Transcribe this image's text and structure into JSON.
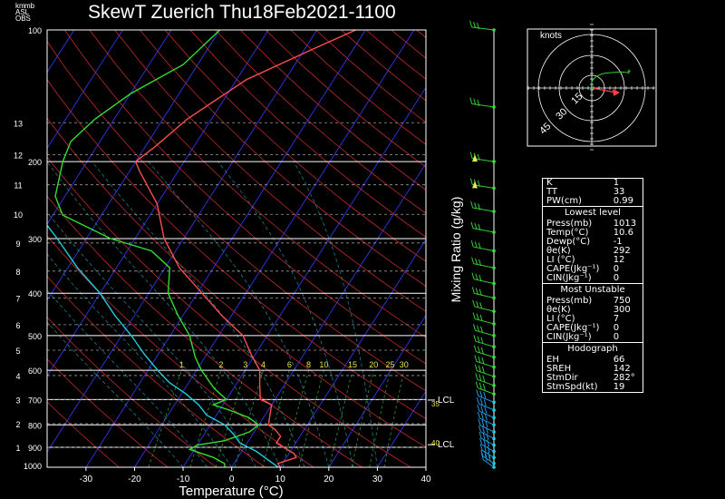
{
  "title": "SkewT Zuerich Thu18Feb2021-1100",
  "corner_labels": [
    "km",
    "mb",
    "ASL",
    "OBS"
  ],
  "xlabel": "Temperature (°C)",
  "mixing_ratio_label": "Mixing Ratio (g/kg)",
  "hodograph": {
    "unit_label": "knots",
    "ring_labels": [
      "15",
      "30",
      "45"
    ]
  },
  "indices_box": {
    "rows": [
      [
        "K",
        "1"
      ],
      [
        "TT",
        "33"
      ],
      [
        "PW(cm)",
        "0.99"
      ]
    ],
    "sections": [
      {
        "title": "Lowest level",
        "rows": [
          [
            "Press(mb)",
            "1013"
          ],
          [
            "Temp(°C)",
            "10.6"
          ],
          [
            "Dewp(°C)",
            "-1"
          ],
          [
            "θe(K)",
            "292"
          ],
          [
            "LI (°C)",
            "12"
          ],
          [
            "CAPE(Jkg⁻¹)",
            "0"
          ],
          [
            "CIN(Jkg⁻¹)",
            "0"
          ]
        ]
      },
      {
        "title": "Most Unstable",
        "rows": [
          [
            "Press(mb)",
            "750"
          ],
          [
            "θe(K)",
            "300"
          ],
          [
            "LI (°C)",
            "7"
          ],
          [
            "CAPE(Jkg⁻¹)",
            "0"
          ],
          [
            "CIN(Jkg⁻¹)",
            "0"
          ]
        ]
      },
      {
        "title": "Hodograph",
        "rows": [
          [
            "EH",
            "66"
          ],
          [
            "SREH",
            "142"
          ],
          [
            "",
            ""
          ],
          [
            "StmDir",
            "282°"
          ],
          [
            "StmSpd(kt)",
            "19"
          ]
        ]
      }
    ]
  },
  "chart_data": {
    "type": "line",
    "title": "SkewT Zuerich Thu18Feb2021-1100",
    "xlabel": "Temperature (°C)",
    "ylabel": "",
    "x_ticks": [
      "-30",
      "-20",
      "-10",
      "0",
      "10",
      "20",
      "30",
      "40"
    ],
    "xlim": [
      -38,
      40
    ],
    "pressure_ticks": [
      "100",
      "200",
      "300",
      "400",
      "500",
      "600",
      "700",
      "800",
      "900",
      "1000"
    ],
    "pressure_levels": [
      100,
      200,
      300,
      400,
      500,
      600,
      700,
      800,
      900,
      1000
    ],
    "ylim": [
      1000,
      100
    ],
    "y_scale": "log",
    "height_ticks_km": [
      "1",
      "2",
      "3",
      "4",
      "5",
      "6",
      "7",
      "8",
      "9",
      "10",
      "11",
      "12",
      "13"
    ],
    "height_levels_mb": [
      900,
      795,
      700,
      617,
      540,
      472,
      410,
      356,
      307,
      264,
      226,
      193,
      163
    ],
    "mixing_ratio_labels": [
      "1",
      "2",
      "3",
      "4",
      "6",
      "8",
      "10",
      "15",
      "20",
      "25",
      "30"
    ],
    "mixing_ratio_values": [
      1,
      2,
      3,
      4,
      6,
      8,
      10,
      15,
      20,
      25,
      30
    ],
    "lcl_labels": [
      "LCL",
      "LCL"
    ],
    "lcl_levels_mb": [
      702,
      888
    ],
    "right_tick_values": [
      "35",
      "40"
    ],
    "right_tick_levels_mb": [
      715,
      880
    ],
    "series": [
      {
        "name": "",
        "color": "#ff4d4d",
        "points": [
          [
            10.6,
            1013
          ],
          [
            9,
            980
          ],
          [
            12,
            950
          ],
          [
            11,
            930
          ],
          [
            8,
            900
          ],
          [
            6,
            880
          ],
          [
            6,
            850
          ],
          [
            4,
            820
          ],
          [
            2,
            800
          ],
          [
            1,
            760
          ],
          [
            0,
            720
          ],
          [
            -3,
            700
          ],
          [
            -5,
            650
          ],
          [
            -7,
            600
          ],
          [
            -11,
            550
          ],
          [
            -15,
            500
          ],
          [
            -22,
            450
          ],
          [
            -29,
            400
          ],
          [
            -37,
            350
          ],
          [
            -44,
            300
          ],
          [
            -50,
            250
          ],
          [
            -58,
            210
          ],
          [
            -60,
            200
          ],
          [
            -58,
            185
          ],
          [
            -55,
            160
          ],
          [
            -48,
            130
          ],
          [
            -38,
            110
          ],
          [
            -32,
            100
          ]
        ]
      },
      {
        "name": "",
        "color": "#33dd33",
        "points": [
          [
            -1,
            1013
          ],
          [
            -2,
            980
          ],
          [
            -5,
            950
          ],
          [
            -8,
            930
          ],
          [
            -11,
            910
          ],
          [
            -10,
            890
          ],
          [
            -5,
            870
          ],
          [
            -3,
            850
          ],
          [
            -1,
            830
          ],
          [
            0,
            800
          ],
          [
            -3,
            770
          ],
          [
            -8,
            740
          ],
          [
            -12,
            720
          ],
          [
            -10,
            700
          ],
          [
            -14,
            660
          ],
          [
            -19,
            600
          ],
          [
            -22,
            560
          ],
          [
            -26,
            500
          ],
          [
            -31,
            450
          ],
          [
            -36,
            400
          ],
          [
            -39,
            350
          ],
          [
            -45,
            320
          ],
          [
            -55,
            300
          ],
          [
            -68,
            265
          ],
          [
            -72,
            240
          ],
          [
            -75,
            200
          ],
          [
            -76,
            180
          ],
          [
            -74,
            160
          ],
          [
            -70,
            140
          ],
          [
            -63,
            120
          ],
          [
            -60,
            100
          ]
        ]
      },
      {
        "name": "",
        "color": "#22ccdd",
        "points": [
          [
            10.6,
            1013
          ],
          [
            3,
            920
          ],
          [
            -1.5,
            880
          ],
          [
            -4,
            840
          ],
          [
            -7,
            800
          ],
          [
            -12,
            760
          ],
          [
            -15,
            720
          ],
          [
            -19,
            680
          ],
          [
            -24,
            640
          ],
          [
            -28,
            600
          ],
          [
            -33,
            550
          ],
          [
            -38,
            500
          ],
          [
            -44,
            450
          ],
          [
            -50,
            400
          ],
          [
            -58,
            350
          ],
          [
            -66,
            300
          ],
          [
            -76,
            250
          ],
          [
            -88,
            200
          ],
          [
            -93,
            185
          ]
        ]
      }
    ],
    "grid": true,
    "legend": "none"
  }
}
